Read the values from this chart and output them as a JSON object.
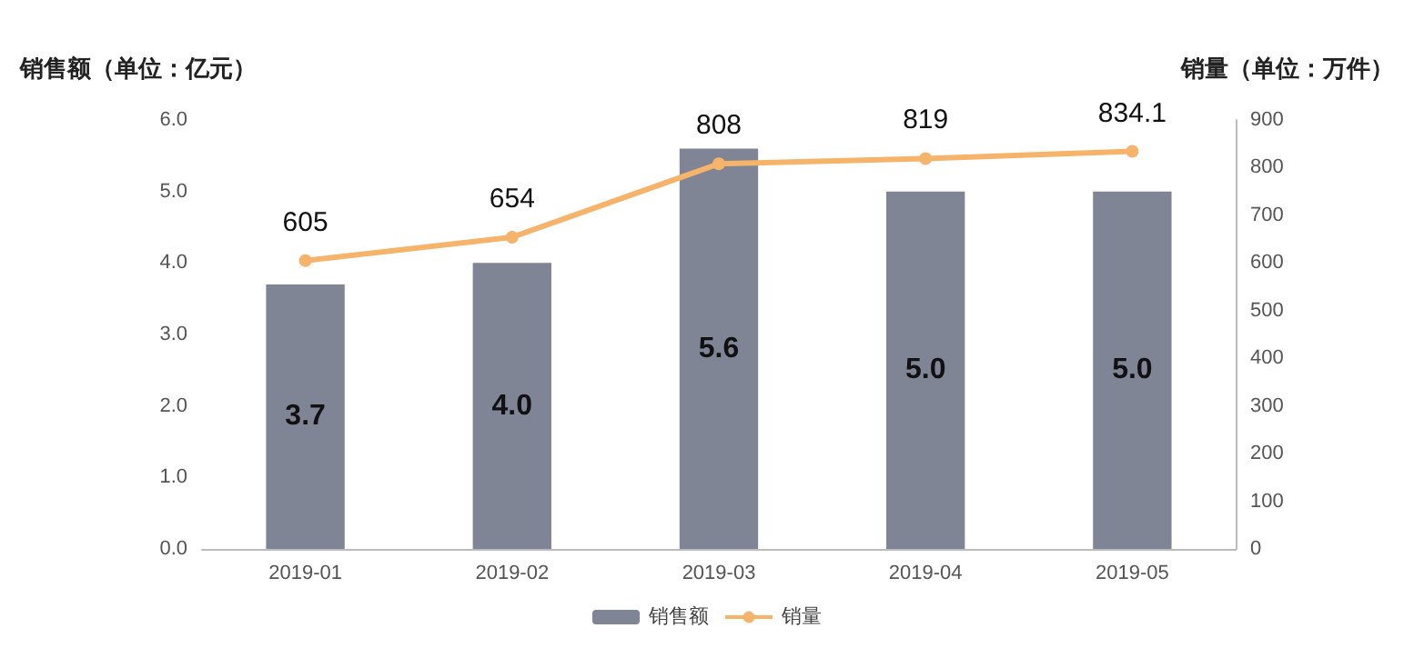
{
  "chart_data": {
    "type": "bar",
    "ylabel": "销售额（单位：亿元）",
    "y2label": "销量（单位：万件）",
    "categories": [
      "2019-01",
      "2019-02",
      "2019-03",
      "2019-04",
      "2019-05"
    ],
    "series": [
      {
        "name": "销售额",
        "color": "#7f8594",
        "values": [
          3.7,
          4.0,
          5.6,
          5.0,
          5.0
        ],
        "value_labels": [
          "3.7",
          "4.0",
          "5.6",
          "5.0",
          "5.0"
        ]
      },
      {
        "name": "销量",
        "type": "line",
        "axis": "y2",
        "color": "#f5b46a",
        "marker": "circle",
        "values": [
          605,
          654,
          808,
          819,
          834.1
        ],
        "value_labels": [
          "605",
          "654",
          "808",
          "819",
          "834.1"
        ]
      }
    ],
    "ylim": [
      0,
      6
    ],
    "yticks": [
      {
        "value": 0,
        "label": "0.0"
      },
      {
        "value": 1,
        "label": "1.0"
      },
      {
        "value": 2,
        "label": "2.0"
      },
      {
        "value": 3,
        "label": "3.0"
      },
      {
        "value": 4,
        "label": "4.0"
      },
      {
        "value": 5,
        "label": "5.0"
      },
      {
        "value": 6,
        "label": "6.0"
      }
    ],
    "y2lim": [
      0,
      900
    ],
    "y2ticks": [
      0,
      100,
      200,
      300,
      400,
      500,
      600,
      700,
      800,
      900
    ],
    "grid": false,
    "legend": "bottom"
  }
}
